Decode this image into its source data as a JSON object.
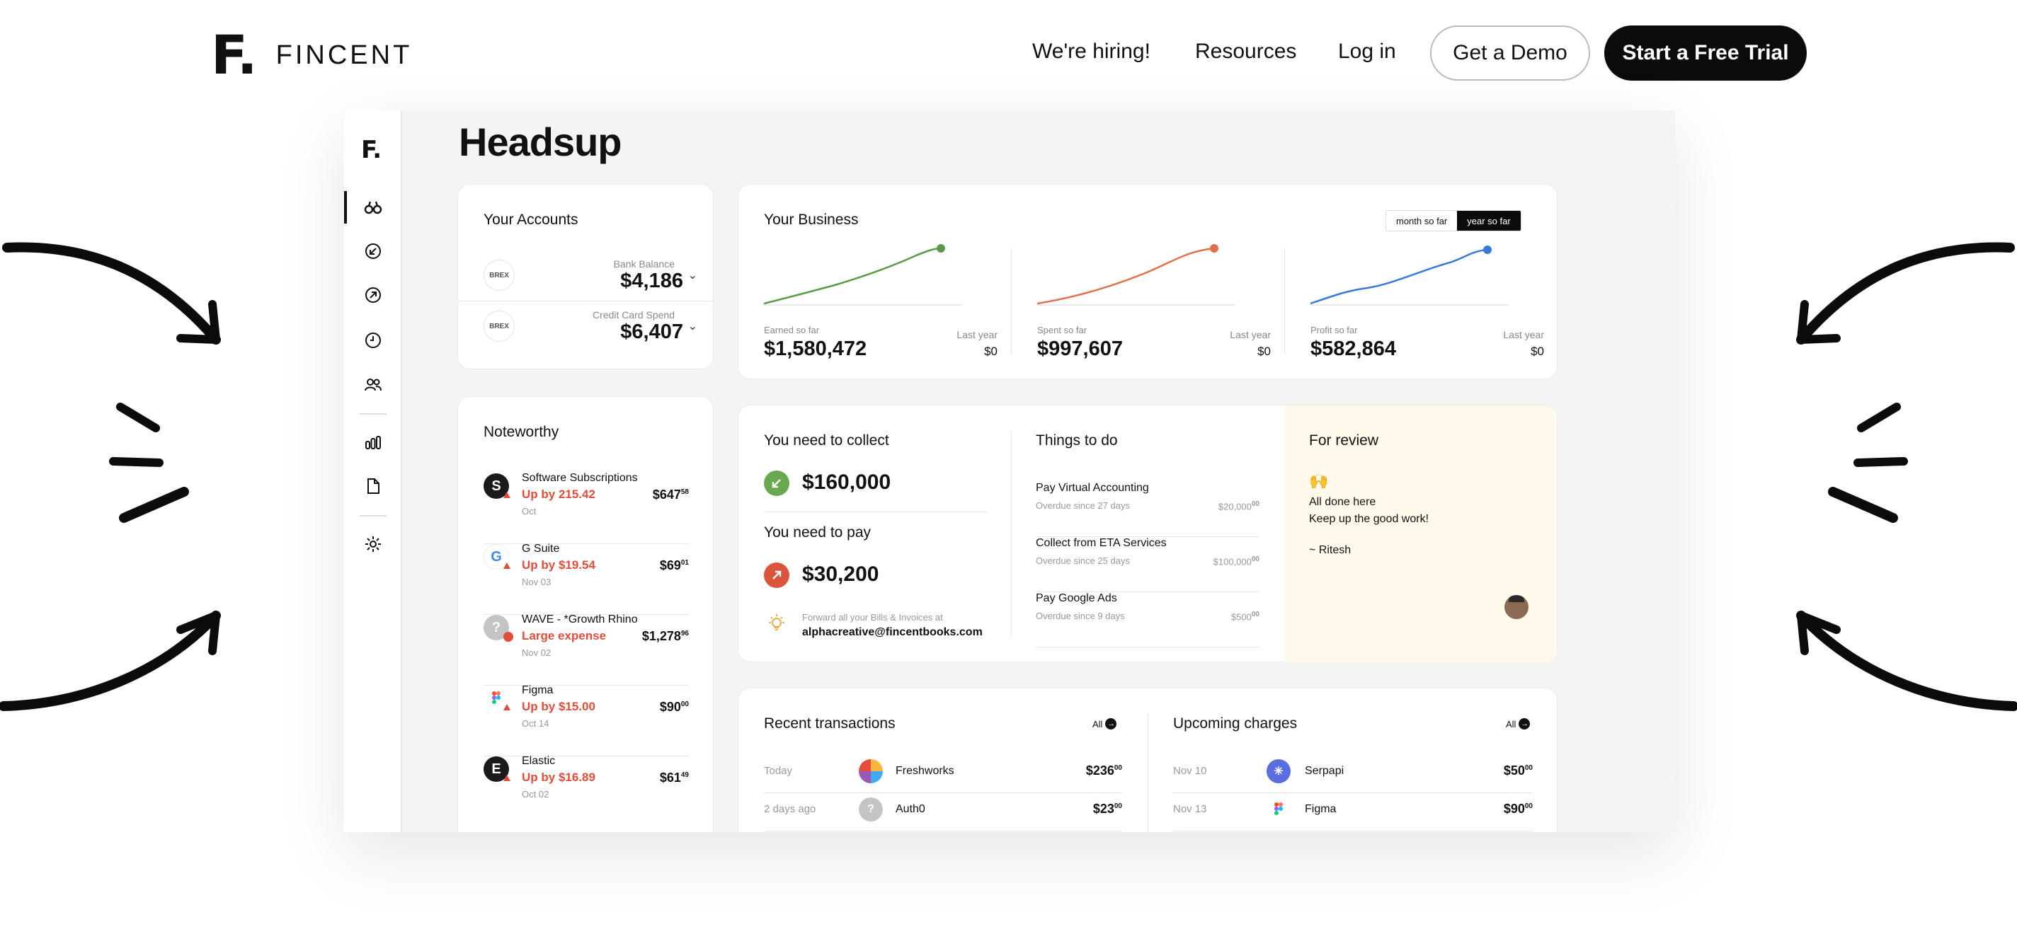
{
  "brand": {
    "mark": "F.",
    "name": "FINCENT"
  },
  "nav": {
    "hiring": "We're hiring!",
    "resources": "Resources",
    "login": "Log in",
    "demo": "Get a Demo",
    "trial": "Start a Free Trial"
  },
  "app": {
    "sidebar_logo": "F.",
    "title": "Headsup",
    "sidebar_icons": [
      "binoculars-icon",
      "arrow-down-left-icon",
      "arrow-up-right-icon",
      "clock-icon",
      "users-icon",
      "bar-chart-icon",
      "document-icon",
      "gear-icon"
    ],
    "accounts": {
      "title": "Your Accounts",
      "items": [
        {
          "logo": "BREX",
          "label": "Bank Balance",
          "value": "$4,186"
        },
        {
          "logo": "BREX",
          "label": "Credit Card Spend",
          "value": "$6,407"
        }
      ]
    },
    "business": {
      "title": "Your Business",
      "toggle": [
        "month so far",
        "year so far"
      ],
      "metrics": [
        {
          "label": "Earned so far",
          "value": "$1,580,472",
          "ly_label": "Last year",
          "ly_value": "$0",
          "color": "#5a9a48"
        },
        {
          "label": "Spent so far",
          "value": "$997,607",
          "ly_label": "Last year",
          "ly_value": "$0",
          "color": "#e0704a"
        },
        {
          "label": "Profit so far",
          "value": "$582,864",
          "ly_label": "Last year",
          "ly_value": "$0",
          "color": "#3b78d8"
        }
      ]
    },
    "noteworthy": {
      "title": "Noteworthy",
      "items": [
        {
          "name": "Software Subscriptions",
          "delta": "Up by 215.42",
          "date": "Oct",
          "amount": "$647",
          "cents": "58",
          "icon": "S"
        },
        {
          "name": "G Suite",
          "delta": "Up by $19.54",
          "date": "Nov 03",
          "amount": "$69",
          "cents": "01",
          "icon": "G"
        },
        {
          "name": "WAVE - *Growth Rhino",
          "delta": "Large expense",
          "date": "Nov 02",
          "amount": "$1,278",
          "cents": "96",
          "icon": "?"
        },
        {
          "name": "Figma",
          "delta": "Up by $15.00",
          "date": "Oct 14",
          "amount": "$90",
          "cents": "00",
          "icon": "figma"
        },
        {
          "name": "Elastic",
          "delta": "Up by $16.89",
          "date": "Oct 02",
          "amount": "$61",
          "cents": "49",
          "icon": "E"
        }
      ]
    },
    "collect": {
      "title": "You need to collect",
      "value": "$160,000"
    },
    "pay": {
      "title": "You need to pay",
      "value": "$30,200"
    },
    "forward": {
      "note": "Forward all your Bills & Invoices at",
      "email": "alphacreative@fincentbooks.com"
    },
    "todo": {
      "title": "Things to do",
      "items": [
        {
          "title": "Pay Virtual Accounting",
          "sub": "Overdue since 27 days",
          "amount": "$20,000",
          "cents": "00"
        },
        {
          "title": "Collect from ETA Services",
          "sub": "Overdue since 25 days",
          "amount": "$100,000",
          "cents": "00"
        },
        {
          "title": "Pay Google Ads",
          "sub": "Overdue since 9 days",
          "amount": "$500",
          "cents": "00"
        }
      ]
    },
    "review": {
      "title": "For review",
      "emoji": "🙌",
      "line1": "All done here",
      "line2": "Keep up the good work!",
      "sign": "~ Ritesh"
    },
    "recent": {
      "title": "Recent transactions",
      "all": "All",
      "rows": [
        {
          "date": "Today",
          "name": "Freshworks",
          "amount": "$236",
          "cents": "00"
        },
        {
          "date": "2 days ago",
          "name": "Auth0",
          "amount": "$23",
          "cents": "00"
        }
      ]
    },
    "upcoming": {
      "title": "Upcoming charges",
      "all": "All",
      "rows": [
        {
          "date": "Nov 10",
          "name": "Serpapi",
          "amount": "$50",
          "cents": "00"
        },
        {
          "date": "Nov 13",
          "name": "Figma",
          "amount": "$90",
          "cents": "00"
        }
      ]
    }
  },
  "colors": {
    "accent_red": "#e04e3a",
    "collect_green": "#6aa84f",
    "pay_red": "#d9553b",
    "review_bg": "#fffaeb"
  }
}
